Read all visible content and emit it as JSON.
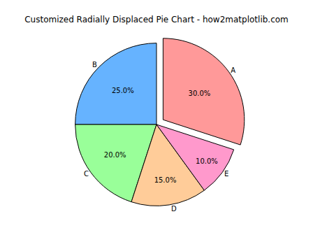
{
  "chart_data": {
    "type": "pie",
    "title": "Customized Radially Displaced Pie Chart - how2matplotlib.com",
    "categories": [
      "A",
      "B",
      "C",
      "D",
      "E"
    ],
    "values": [
      30,
      25,
      20,
      15,
      10
    ],
    "value_labels": [
      "30.0%",
      "25.0%",
      "20.0%",
      "15.0%",
      "10.0%"
    ],
    "colors": [
      "#ff9999",
      "#66b3ff",
      "#99ff99",
      "#ffcc99",
      "#ff99cc"
    ],
    "data_labels": true
  }
}
